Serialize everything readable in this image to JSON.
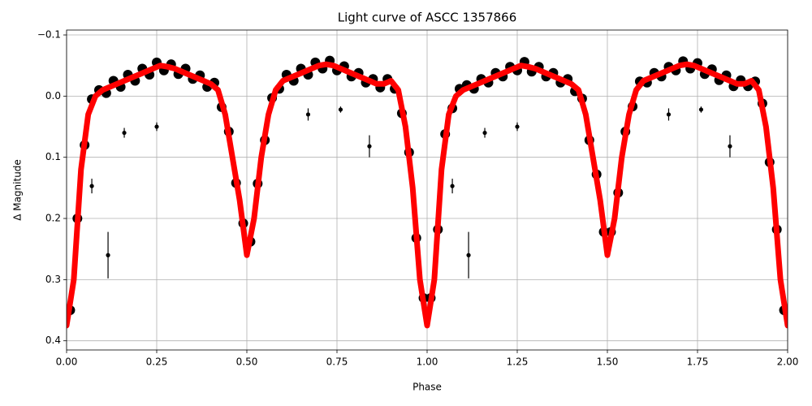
{
  "chart_data": {
    "type": "scatter",
    "title": "Light curve of ASCC 1357866",
    "xlabel": "Phase",
    "ylabel": "Δ Magnitude",
    "xlim": [
      0,
      2
    ],
    "ylim": [
      0.415,
      -0.108
    ],
    "xticks": [
      {
        "value": 0,
        "label": "0.00"
      },
      0.25,
      {
        "value": 0.5,
        "label": "0.50"
      },
      0.75,
      {
        "value": 1,
        "label": "1.00"
      },
      1.25,
      {
        "value": 1.5,
        "label": "1.50"
      },
      1.75,
      {
        "value": 2,
        "label": "2.00"
      }
    ],
    "yticks": [
      {
        "value": -0.1,
        "label": "−0.1"
      },
      {
        "value": 0,
        "label": "0.0"
      },
      0.1,
      0.2,
      0.3,
      0.4
    ],
    "grid": true,
    "observations": {
      "color": "#000000",
      "x": [
        0.01,
        0.03,
        0.05,
        0.07,
        0.09,
        0.11,
        0.13,
        0.15,
        0.17,
        0.19,
        0.21,
        0.23,
        0.25,
        0.27,
        0.29,
        0.31,
        0.33,
        0.35,
        0.37,
        0.39,
        0.41,
        0.43,
        0.45,
        0.47,
        0.49,
        0.51,
        0.53,
        0.55,
        0.57,
        0.59,
        0.61,
        0.63,
        0.65,
        0.67,
        0.69,
        0.71,
        0.73,
        0.75,
        0.77,
        0.79,
        0.81,
        0.83,
        0.85,
        0.87,
        0.89,
        0.91,
        0.93,
        0.95,
        0.97,
        0.99,
        1.01,
        1.03,
        1.05,
        1.07,
        1.09,
        1.11,
        1.13,
        1.15,
        1.17,
        1.19,
        1.21,
        1.23,
        1.25,
        1.27,
        1.29,
        1.31,
        1.33,
        1.35,
        1.37,
        1.39,
        1.41,
        1.43,
        1.45,
        1.47,
        1.49,
        1.51,
        1.53,
        1.55,
        1.57,
        1.59,
        1.61,
        1.63,
        1.65,
        1.67,
        1.69,
        1.71,
        1.73,
        1.75,
        1.77,
        1.79,
        1.81,
        1.83,
        1.85,
        1.87,
        1.89,
        1.91,
        1.93,
        1.95,
        1.97,
        1.99
      ],
      "values": [
        0.35,
        0.2,
        0.08,
        0.005,
        -0.01,
        -0.005,
        -0.025,
        -0.015,
        -0.035,
        -0.025,
        -0.045,
        -0.035,
        -0.055,
        -0.042,
        -0.052,
        -0.036,
        -0.045,
        -0.028,
        -0.034,
        -0.015,
        -0.022,
        0.018,
        0.058,
        0.142,
        0.208,
        0.238,
        0.143,
        0.072,
        0.003,
        -0.012,
        -0.035,
        -0.025,
        -0.045,
        -0.035,
        -0.055,
        -0.045,
        -0.058,
        -0.042,
        -0.049,
        -0.032,
        -0.038,
        -0.022,
        -0.028,
        -0.014,
        -0.028,
        -0.012,
        0.028,
        0.092,
        0.232,
        0.33,
        0.33,
        0.218,
        0.062,
        0.02,
        -0.012,
        -0.018,
        -0.012,
        -0.028,
        -0.022,
        -0.038,
        -0.032,
        -0.048,
        -0.042,
        -0.056,
        -0.04,
        -0.048,
        -0.032,
        -0.038,
        -0.022,
        -0.028,
        -0.008,
        0.004,
        0.072,
        0.128,
        0.222,
        0.222,
        0.158,
        0.058,
        0.017,
        -0.024,
        -0.022,
        -0.038,
        -0.032,
        -0.048,
        -0.042,
        -0.057,
        -0.045,
        -0.054,
        -0.036,
        -0.044,
        -0.026,
        -0.034,
        -0.016,
        -0.026,
        -0.016,
        -0.024,
        0.012,
        0.108,
        0.218,
        0.35
      ]
    },
    "outliers": {
      "color": "#000000",
      "x": [
        0.07,
        0.115,
        0.16,
        0.25,
        0.67,
        0.76,
        0.84,
        1.07,
        1.115,
        1.16,
        1.25,
        1.67,
        1.76,
        1.84
      ],
      "values": [
        0.147,
        0.26,
        0.06,
        0.05,
        0.03,
        0.022,
        0.082,
        0.147,
        0.26,
        0.06,
        0.05,
        0.03,
        0.022,
        0.082
      ],
      "errors": [
        0.012,
        0.038,
        0.008,
        0.007,
        0.01,
        0.005,
        0.018,
        0.012,
        0.038,
        0.008,
        0.007,
        0.01,
        0.005,
        0.018
      ]
    },
    "model": {
      "color": "#ff0000",
      "x": [
        0,
        0.02,
        0.04,
        0.06,
        0.08,
        0.1,
        0.12,
        0.14,
        0.16,
        0.18,
        0.2,
        0.22,
        0.24,
        0.26,
        0.28,
        0.3,
        0.32,
        0.34,
        0.36,
        0.38,
        0.4,
        0.42,
        0.44,
        0.46,
        0.48,
        0.5,
        0.52,
        0.54,
        0.56,
        0.58,
        0.6,
        0.62,
        0.64,
        0.66,
        0.68,
        0.7,
        0.72,
        0.74,
        0.76,
        0.78,
        0.8,
        0.82,
        0.84,
        0.86,
        0.88,
        0.9,
        0.92,
        0.94,
        0.96,
        0.98,
        1,
        1.02,
        1.04,
        1.06,
        1.08,
        1.1,
        1.12,
        1.14,
        1.16,
        1.18,
        1.2,
        1.22,
        1.24,
        1.26,
        1.28,
        1.3,
        1.32,
        1.34,
        1.36,
        1.38,
        1.4,
        1.42,
        1.44,
        1.46,
        1.48,
        1.5,
        1.52,
        1.54,
        1.56,
        1.58,
        1.6,
        1.62,
        1.64,
        1.66,
        1.68,
        1.7,
        1.72,
        1.74,
        1.76,
        1.78,
        1.8,
        1.82,
        1.84,
        1.86,
        1.88,
        1.9,
        1.92,
        1.94,
        1.96,
        1.98,
        2
      ],
      "values": [
        0.375,
        0.3,
        0.12,
        0.03,
        0,
        -0.01,
        -0.015,
        -0.02,
        -0.025,
        -0.03,
        -0.035,
        -0.04,
        -0.045,
        -0.05,
        -0.048,
        -0.045,
        -0.04,
        -0.035,
        -0.03,
        -0.025,
        -0.02,
        -0.01,
        0.03,
        0.1,
        0.17,
        0.26,
        0.2,
        0.1,
        0.03,
        -0.01,
        -0.025,
        -0.03,
        -0.035,
        -0.04,
        -0.045,
        -0.05,
        -0.052,
        -0.05,
        -0.045,
        -0.04,
        -0.035,
        -0.03,
        -0.025,
        -0.02,
        -0.02,
        -0.025,
        -0.01,
        0.05,
        0.15,
        0.3,
        0.375,
        0.3,
        0.12,
        0.03,
        0,
        -0.01,
        -0.015,
        -0.02,
        -0.025,
        -0.03,
        -0.035,
        -0.04,
        -0.045,
        -0.05,
        -0.048,
        -0.045,
        -0.04,
        -0.035,
        -0.03,
        -0.025,
        -0.02,
        -0.01,
        0.03,
        0.1,
        0.17,
        0.26,
        0.2,
        0.1,
        0.03,
        -0.01,
        -0.025,
        -0.03,
        -0.035,
        -0.04,
        -0.045,
        -0.05,
        -0.052,
        -0.05,
        -0.045,
        -0.04,
        -0.035,
        -0.03,
        -0.025,
        -0.02,
        -0.02,
        -0.025,
        -0.01,
        0.05,
        0.15,
        0.3,
        0.375
      ]
    }
  }
}
